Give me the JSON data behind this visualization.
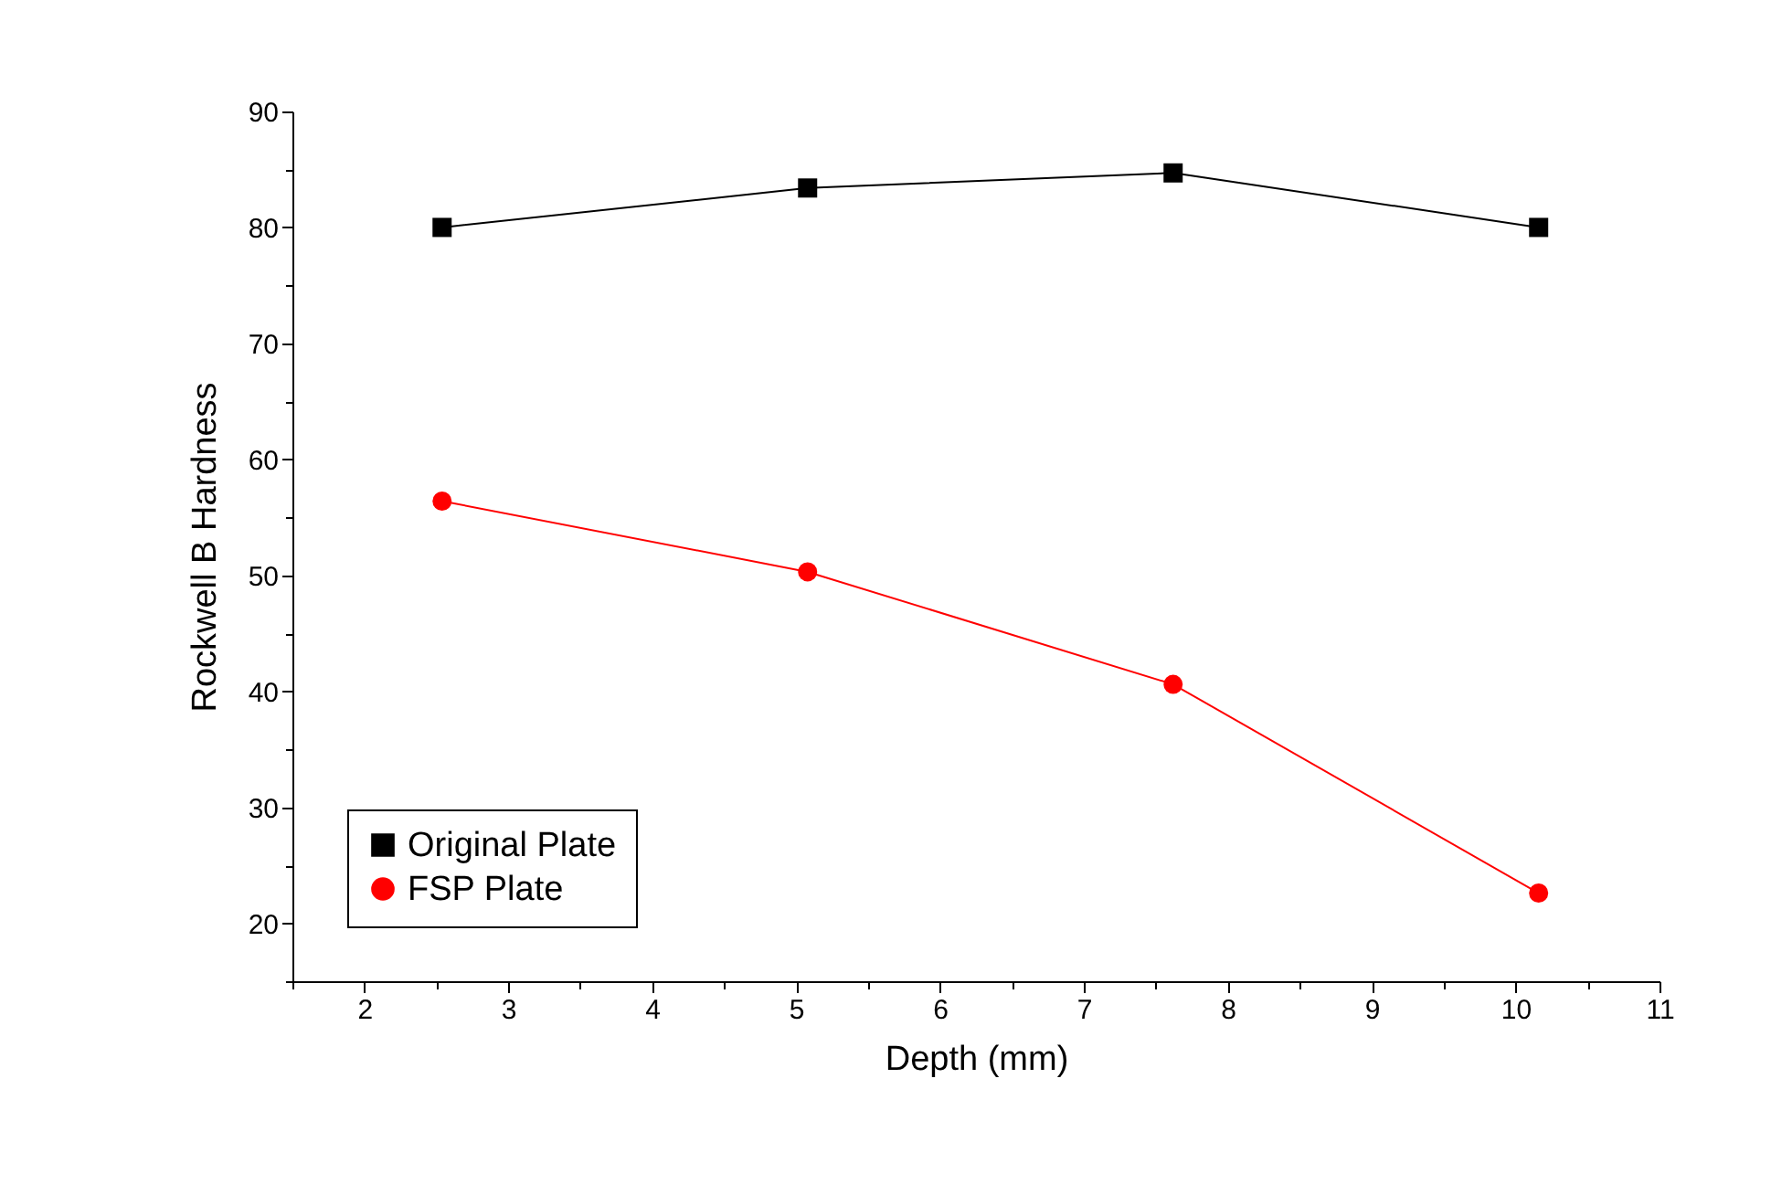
{
  "chart_data": {
    "type": "line",
    "xlabel": "Depth (mm)",
    "ylabel": "Rockwell B Hardness",
    "x": [
      2.54,
      5.08,
      7.62,
      10.16
    ],
    "series": [
      {
        "name": "Original Plate",
        "color": "#000000",
        "marker": "square",
        "values": [
          80.0,
          83.4,
          84.7,
          80.0
        ]
      },
      {
        "name": "FSP Plate",
        "color": "#ff0000",
        "marker": "circle",
        "values": [
          56.4,
          50.3,
          40.6,
          22.6
        ]
      }
    ],
    "xlim": [
      1.5,
      11
    ],
    "ylim": [
      15,
      90
    ],
    "xticks": [
      {
        "value": 1.5,
        "label": null
      },
      2,
      {
        "value": 2.5,
        "label": null
      },
      3,
      {
        "value": 3.5,
        "label": null
      },
      4,
      {
        "value": 4.5,
        "label": null
      },
      5,
      {
        "value": 5.5,
        "label": null
      },
      6,
      {
        "value": 6.5,
        "label": null
      },
      7,
      {
        "value": 7.5,
        "label": null
      },
      8,
      {
        "value": 8.5,
        "label": null
      },
      9,
      {
        "value": 9.5,
        "label": null
      },
      10,
      {
        "value": 10.5,
        "label": null
      },
      11
    ],
    "yticks": [
      {
        "value": 15,
        "label": null
      },
      20,
      {
        "value": 25,
        "label": null
      },
      30,
      {
        "value": 35,
        "label": null
      },
      40,
      {
        "value": 45,
        "label": null
      },
      50,
      {
        "value": 55,
        "label": null
      },
      60,
      {
        "value": 65,
        "label": null
      },
      70,
      {
        "value": 75,
        "label": null
      },
      80,
      {
        "value": 85,
        "label": null
      },
      90
    ],
    "grid": false,
    "legend": "bottom left",
    "line_style": "solid"
  }
}
